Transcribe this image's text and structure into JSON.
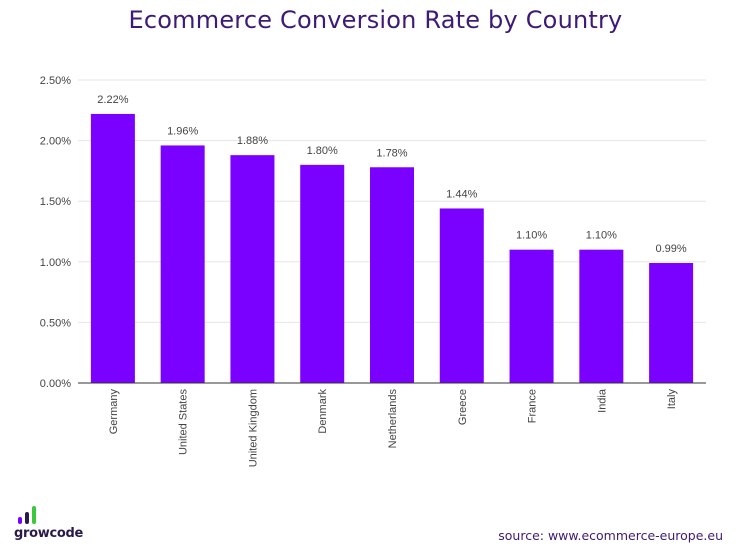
{
  "chart_data": {
    "type": "bar",
    "title": "Ecommerce Conversion Rate by Country",
    "categories": [
      "Germany",
      "United States",
      "United Kingdom",
      "Denmark",
      "Netherlands",
      "Greece",
      "France",
      "India",
      "Italy"
    ],
    "values": [
      2.22,
      1.96,
      1.88,
      1.8,
      1.78,
      1.44,
      1.1,
      1.1,
      0.99
    ],
    "value_labels": [
      "2.22%",
      "1.96%",
      "1.88%",
      "1.80%",
      "1.78%",
      "1.44%",
      "1.10%",
      "1.10%",
      "0.99%"
    ],
    "yticks": [
      0,
      0.5,
      1.0,
      1.5,
      2.0,
      2.5
    ],
    "ytick_labels": [
      "0.00%",
      "0.50%",
      "1.00%",
      "1.50%",
      "2.00%",
      "2.50%"
    ],
    "ylim": [
      0,
      2.5
    ],
    "xlabel": "",
    "ylabel": "",
    "grid": true,
    "legend": "none",
    "bar_color": "#7a00ff",
    "title_color": "#3d1a78"
  },
  "footer": {
    "brand": "growcode",
    "brand_icon": "growth-bars-icon",
    "source": "source: www.ecommerce-europe.eu"
  }
}
